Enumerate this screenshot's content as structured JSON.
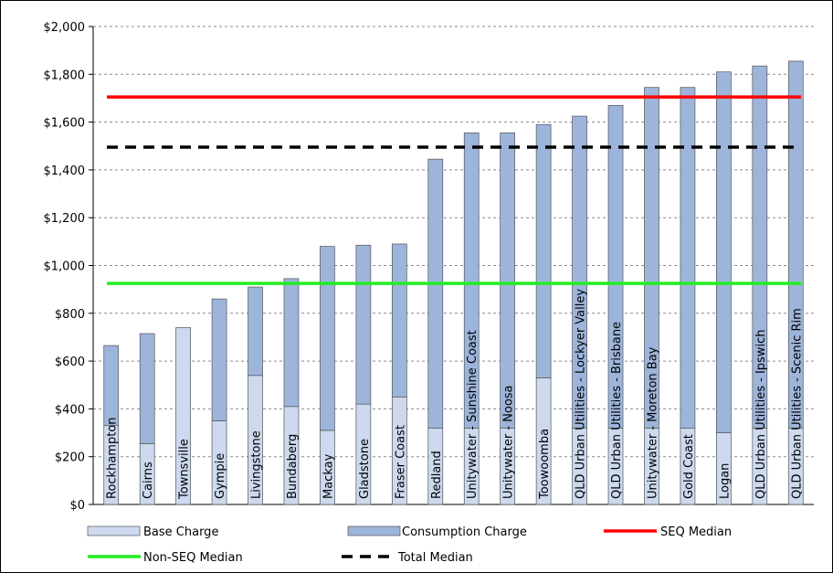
{
  "chart_data": {
    "type": "bar",
    "stacked": true,
    "categories": [
      "Rockhampton",
      "Cairns",
      "Townsville",
      "Gympie",
      "Livingstone",
      "Bundaberg",
      "Mackay",
      "Gladstone",
      "Fraser Coast",
      "Redland",
      "Unitywater - Sunshine Coast",
      "Unitywater - Noosa",
      "Toowoomba",
      "QLD Urban Utilities - Lockyer Valley",
      "QLD Urban Utilities - Brisbane",
      "Unitywater - Moreton Bay",
      "Gold Coast",
      "Logan",
      "QLD Urban Utilities - Ipswich",
      "QLD Urban Utilities - Scenic Rim"
    ],
    "series": [
      {
        "name": "Base Charge",
        "color": "#ccd9ee",
        "values": [
          330,
          255,
          740,
          350,
          540,
          410,
          310,
          420,
          450,
          320,
          320,
          320,
          530,
          320,
          320,
          320,
          320,
          300,
          320,
          320
        ]
      },
      {
        "name": "Consumption Charge",
        "color": "#9db4db",
        "values": [
          335,
          460,
          0,
          510,
          370,
          535,
          770,
          665,
          640,
          1125,
          1235,
          1235,
          1060,
          1305,
          1350,
          1425,
          1425,
          1510,
          1515,
          1535
        ]
      }
    ],
    "reference_lines": [
      {
        "name": "SEQ Median",
        "value": 1705,
        "color": "#ff0000",
        "style": "solid"
      },
      {
        "name": "Non-SEQ Median",
        "value": 925,
        "color": "#22ee22",
        "style": "solid"
      },
      {
        "name": "Total Median",
        "value": 1495,
        "color": "#000000",
        "style": "dashed"
      }
    ],
    "y_ticks": [
      "$0",
      "$200",
      "$400",
      "$600",
      "$800",
      "$1,000",
      "$1,200",
      "$1,400",
      "$1,600",
      "$1,800",
      "$2,000"
    ],
    "ylim": [
      0,
      2000
    ],
    "grid": true,
    "legend_position": "bottom",
    "title": "",
    "xlabel": "",
    "ylabel": ""
  }
}
